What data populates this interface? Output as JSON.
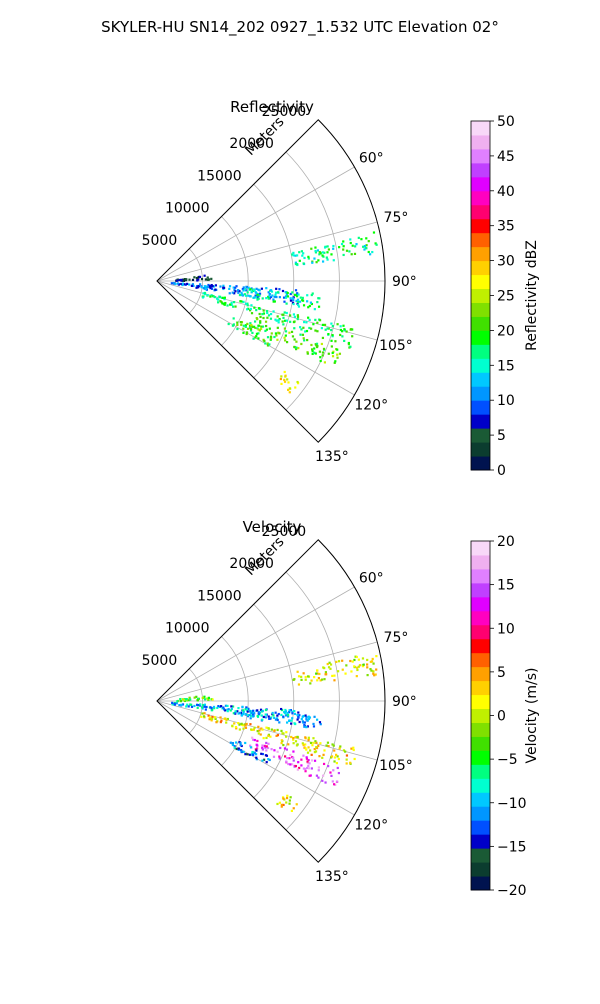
{
  "suptitle": "SKYLER-HU  SN14_202  0927_1.532 UTC Elevation 02°",
  "chart_data": [
    {
      "type": "polar-sector-scan",
      "title": "Reflectivity",
      "radial_axis_label": "Meters",
      "range_ticks": [
        5000,
        10000,
        15000,
        20000,
        25000
      ],
      "range_tick_labels": [
        "5000",
        "10000",
        "15000",
        "20000",
        "25000"
      ],
      "rmax": 25000,
      "azimuth_ticks": [
        60,
        75,
        90,
        105,
        120,
        135
      ],
      "azimuth_tick_labels": [
        "60°",
        "75°",
        "90°",
        "105°",
        "120°",
        "135°"
      ],
      "azimuth_range": [
        45,
        135
      ],
      "grid": true,
      "colorbar": {
        "label": "Reflectivity dBZ",
        "min": 0,
        "max": 50,
        "ticks": [
          0,
          5,
          10,
          15,
          20,
          25,
          30,
          35,
          40,
          45,
          50
        ],
        "tick_labels": [
          "0",
          "5",
          "10",
          "15",
          "20",
          "25",
          "30",
          "35",
          "40",
          "45",
          "50"
        ],
        "colors": [
          "#00134f",
          "#0b3d2f",
          "#1a5a35",
          "#0000c8",
          "#0050ff",
          "#0096ff",
          "#00c8ff",
          "#00ffd0",
          "#00ff80",
          "#00ff00",
          "#40e000",
          "#80e000",
          "#c0f000",
          "#ffff00",
          "#ffd000",
          "#ffa000",
          "#ff6000",
          "#ff0000",
          "#ff0070",
          "#ff00c0",
          "#e000ff",
          "#c040ff",
          "#e080ff",
          "#f0b0f0",
          "#f8d8f8"
        ]
      },
      "echo_features": [
        {
          "az": 80,
          "r0": 15000,
          "r1": 24500,
          "value": 17
        },
        {
          "az": 96,
          "r0": 1500,
          "r1": 16000,
          "value": 10
        },
        {
          "az": 97,
          "r0": 9000,
          "r1": 18000,
          "value": 16
        },
        {
          "az": 106,
          "r0": 5000,
          "r1": 22500,
          "value": 18
        },
        {
          "az": 113,
          "r0": 11000,
          "r1": 21500,
          "value": 21
        },
        {
          "az": 85,
          "r0": 2000,
          "r1": 6000,
          "value": 4
        },
        {
          "az": 128,
          "r0": 17000,
          "r1": 19000,
          "value": 28
        },
        {
          "az": 118,
          "r0": 9000,
          "r1": 14000,
          "value": 20
        }
      ]
    },
    {
      "type": "polar-sector-scan",
      "title": "Velocity",
      "radial_axis_label": "Meters",
      "range_ticks": [
        5000,
        10000,
        15000,
        20000,
        25000
      ],
      "range_tick_labels": [
        "5000",
        "10000",
        "15000",
        "20000",
        "25000"
      ],
      "rmax": 25000,
      "azimuth_ticks": [
        60,
        75,
        90,
        105,
        120,
        135
      ],
      "azimuth_tick_labels": [
        "60°",
        "75°",
        "90°",
        "105°",
        "120°",
        "135°"
      ],
      "azimuth_range": [
        45,
        135
      ],
      "grid": true,
      "colorbar": {
        "label": "Velocity (m/s)",
        "min": -20,
        "max": 20,
        "ticks": [
          -20,
          -15,
          -10,
          -5,
          0,
          5,
          10,
          15,
          20
        ],
        "tick_labels": [
          "−20",
          "−15",
          "−10",
          "−5",
          "0",
          "5",
          "10",
          "15",
          "20"
        ],
        "colors": [
          "#00134f",
          "#0b3d2f",
          "#1a5a35",
          "#0000c8",
          "#0050ff",
          "#0096ff",
          "#00c8ff",
          "#00ffd0",
          "#00ff80",
          "#00ff00",
          "#40e000",
          "#80e000",
          "#c0f000",
          "#ffff00",
          "#ffd000",
          "#ffa000",
          "#ff6000",
          "#ff0000",
          "#ff0070",
          "#ff00c0",
          "#e000ff",
          "#c040ff",
          "#e080ff",
          "#f0b0f0",
          "#f8d8f8"
        ]
      },
      "echo_features": [
        {
          "az": 80,
          "r0": 15000,
          "r1": 24500,
          "value": 1
        },
        {
          "az": 96,
          "r0": 1500,
          "r1": 16000,
          "value": -10
        },
        {
          "az": 97,
          "r0": 9000,
          "r1": 18000,
          "value": -11
        },
        {
          "az": 106,
          "r0": 5000,
          "r1": 22500,
          "value": 2
        },
        {
          "az": 113,
          "r0": 11000,
          "r1": 21500,
          "value": 14
        },
        {
          "az": 85,
          "r0": 2000,
          "r1": 6000,
          "value": -3
        },
        {
          "az": 128,
          "r0": 17000,
          "r1": 19000,
          "value": 2
        },
        {
          "az": 118,
          "r0": 9000,
          "r1": 14000,
          "value": -12
        }
      ]
    }
  ]
}
